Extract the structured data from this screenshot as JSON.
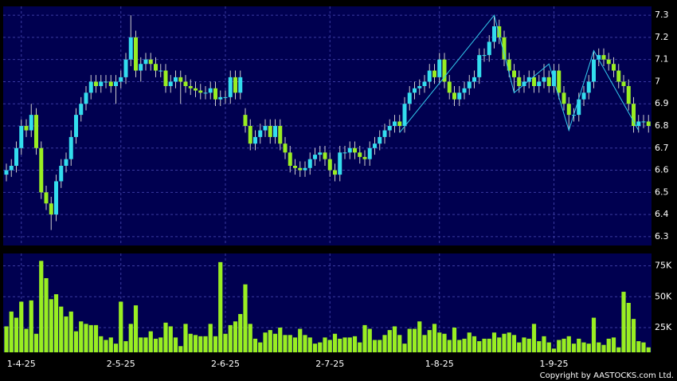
{
  "chart_data": [
    {
      "type": "candlestick",
      "categories": [
        null,
        null,
        null,
        "1-4-25",
        null,
        null,
        null,
        null,
        null,
        null,
        null,
        null,
        null,
        null,
        null,
        null,
        null,
        null,
        null,
        null,
        null,
        null,
        null,
        "2-5-25",
        null,
        null,
        null,
        null,
        null,
        null,
        null,
        null,
        null,
        null,
        null,
        null,
        null,
        null,
        null,
        null,
        null,
        null,
        null,
        null,
        "2-6-25",
        null,
        null,
        null,
        null,
        null,
        null,
        null,
        null,
        null,
        null,
        null,
        null,
        null,
        null,
        null,
        null,
        null,
        null,
        null,
        null,
        "2-7-25",
        null,
        null,
        null,
        null,
        null,
        null,
        null,
        null,
        null,
        null,
        null,
        null,
        null,
        null,
        null,
        null,
        null,
        null,
        null,
        null,
        null,
        "1-8-25",
        null,
        null,
        null,
        null,
        null,
        null,
        null,
        null,
        null,
        null,
        null,
        null,
        null,
        null,
        null,
        null,
        null,
        null,
        null,
        null,
        null,
        null,
        "1-9-25",
        null,
        null,
        null,
        null,
        null,
        null,
        null,
        null,
        null,
        null,
        null,
        null,
        null,
        null,
        null,
        null,
        null,
        null,
        null
      ],
      "open": [
        6.58,
        6.6,
        6.62,
        6.7,
        6.8,
        6.78,
        6.85,
        6.7,
        6.5,
        6.45,
        6.4,
        6.55,
        6.62,
        6.65,
        6.75,
        6.85,
        6.9,
        6.95,
        7.0,
        6.98,
        7.0,
        7.0,
        6.98,
        7.0,
        7.02,
        7.1,
        7.2,
        7.05,
        7.08,
        7.1,
        7.08,
        7.05,
        7.05,
        6.98,
        7.0,
        7.02,
        7.0,
        6.98,
        6.97,
        6.96,
        6.95,
        6.95,
        6.97,
        6.92,
        6.93,
        6.93,
        7.02,
        6.95,
        6.85,
        6.8,
        6.72,
        6.75,
        6.78,
        6.8,
        6.75,
        6.8,
        6.72,
        6.68,
        6.62,
        6.61,
        6.6,
        6.61,
        6.65,
        6.67,
        6.68,
        6.65,
        6.6,
        6.58,
        6.68,
        6.68,
        6.7,
        6.68,
        6.66,
        6.65,
        6.7,
        6.72,
        6.75,
        6.78,
        6.8,
        6.82,
        6.8,
        6.9,
        6.95,
        6.97,
        6.98,
        7.0,
        7.05,
        7.02,
        7.1,
        7.0,
        6.95,
        6.92,
        6.95,
        6.97,
        7.0,
        7.02,
        7.12,
        7.12,
        7.18,
        7.25,
        7.2,
        7.1,
        7.05,
        7.02,
        6.98,
        7.0,
        7.02,
        6.98,
        7.0,
        7.02,
        6.98,
        7.05,
        6.95,
        6.9,
        6.85,
        6.85,
        6.92,
        6.95,
        7.0,
        7.1,
        7.12,
        7.1,
        7.08,
        7.05,
        7.0,
        6.98,
        6.9,
        6.8,
        6.82,
        6.82
      ],
      "high": [
        6.63,
        6.65,
        6.73,
        6.83,
        6.83,
        6.9,
        6.88,
        6.73,
        6.53,
        6.48,
        6.58,
        6.65,
        6.68,
        6.78,
        6.88,
        6.93,
        6.98,
        7.03,
        7.03,
        7.03,
        7.03,
        7.03,
        7.03,
        7.05,
        7.13,
        7.3,
        7.23,
        7.11,
        7.13,
        7.13,
        7.11,
        7.08,
        7.08,
        7.03,
        7.05,
        7.05,
        7.03,
        7.01,
        7.0,
        6.99,
        6.98,
        7.0,
        7.0,
        6.96,
        6.96,
        7.05,
        7.05,
        7.05,
        6.88,
        6.83,
        6.78,
        6.81,
        6.83,
        6.83,
        6.83,
        6.83,
        6.75,
        6.71,
        6.65,
        6.64,
        6.64,
        6.68,
        6.7,
        6.71,
        6.71,
        6.68,
        6.63,
        6.71,
        6.71,
        6.73,
        6.73,
        6.71,
        6.69,
        6.73,
        6.75,
        6.78,
        6.81,
        6.83,
        6.85,
        6.85,
        6.93,
        6.98,
        7.0,
        7.01,
        7.03,
        7.08,
        7.08,
        7.13,
        7.13,
        7.03,
        6.98,
        6.98,
        7.0,
        7.03,
        7.05,
        7.15,
        7.15,
        7.21,
        7.3,
        7.28,
        7.23,
        7.13,
        7.08,
        7.05,
        7.03,
        7.05,
        7.05,
        7.03,
        7.08,
        7.05,
        7.08,
        7.08,
        6.98,
        6.93,
        6.88,
        6.95,
        6.98,
        7.03,
        7.14,
        7.15,
        7.15,
        7.13,
        7.11,
        7.08,
        7.03,
        7.01,
        6.93,
        6.85,
        6.85,
        6.85
      ],
      "low": [
        6.55,
        6.57,
        6.59,
        6.67,
        6.75,
        6.75,
        6.67,
        6.47,
        6.42,
        6.33,
        6.37,
        6.52,
        6.59,
        6.62,
        6.72,
        6.82,
        6.87,
        6.92,
        6.95,
        6.95,
        6.97,
        6.95,
        6.9,
        6.97,
        6.99,
        7.07,
        7.02,
        7.0,
        7.05,
        7.05,
        7.02,
        7.02,
        6.95,
        6.95,
        6.97,
        6.9,
        6.95,
        6.94,
        6.93,
        6.92,
        6.92,
        6.92,
        6.89,
        6.89,
        6.9,
        6.9,
        6.92,
        6.92,
        6.77,
        6.69,
        6.69,
        6.72,
        6.75,
        6.72,
        6.72,
        6.69,
        6.65,
        6.59,
        6.58,
        6.57,
        6.57,
        6.58,
        6.62,
        6.64,
        6.62,
        6.57,
        6.55,
        6.55,
        6.65,
        6.65,
        6.65,
        6.63,
        6.62,
        6.62,
        6.67,
        6.69,
        6.72,
        6.75,
        6.77,
        6.77,
        6.77,
        6.87,
        6.92,
        6.94,
        6.95,
        6.97,
        6.99,
        6.99,
        6.97,
        6.92,
        6.89,
        6.89,
        6.92,
        6.94,
        6.97,
        6.99,
        7.09,
        7.09,
        7.15,
        7.17,
        7.07,
        7.02,
        6.95,
        6.95,
        6.95,
        6.97,
        6.95,
        6.95,
        6.97,
        6.95,
        6.95,
        6.92,
        6.87,
        6.78,
        6.82,
        6.82,
        6.89,
        6.92,
        6.97,
        7.07,
        7.07,
        7.05,
        7.02,
        6.97,
        6.95,
        6.87,
        6.77,
        6.77,
        6.79,
        6.77
      ],
      "close": [
        6.6,
        6.62,
        6.7,
        6.8,
        6.78,
        6.85,
        6.7,
        6.5,
        6.45,
        6.4,
        6.55,
        6.62,
        6.65,
        6.75,
        6.85,
        6.9,
        6.95,
        7.0,
        6.98,
        7.0,
        7.0,
        6.98,
        7.0,
        7.02,
        7.1,
        7.2,
        7.05,
        7.08,
        7.1,
        7.08,
        7.05,
        7.05,
        6.98,
        7.0,
        7.02,
        7.0,
        6.98,
        6.97,
        6.96,
        6.95,
        6.95,
        6.97,
        6.92,
        6.93,
        6.93,
        7.02,
        6.95,
        7.02,
        6.8,
        6.72,
        6.75,
        6.78,
        6.8,
        6.75,
        6.8,
        6.72,
        6.68,
        6.62,
        6.61,
        6.6,
        6.61,
        6.65,
        6.67,
        6.68,
        6.65,
        6.6,
        6.58,
        6.68,
        6.68,
        6.7,
        6.68,
        6.66,
        6.65,
        6.7,
        6.72,
        6.75,
        6.78,
        6.8,
        6.82,
        6.8,
        6.9,
        6.95,
        6.97,
        6.98,
        7.0,
        7.05,
        7.02,
        7.1,
        7.0,
        6.95,
        6.92,
        6.95,
        6.97,
        7.0,
        7.02,
        7.12,
        7.12,
        7.18,
        7.25,
        7.2,
        7.1,
        7.05,
        7.02,
        6.98,
        7.0,
        7.02,
        6.98,
        7.0,
        7.02,
        6.98,
        7.05,
        6.95,
        6.9,
        6.85,
        6.85,
        6.92,
        6.95,
        7.0,
        7.1,
        7.12,
        7.1,
        7.08,
        7.05,
        7.0,
        6.98,
        6.9,
        6.8,
        6.82,
        6.82,
        6.8
      ],
      "up_color": "#33ddee",
      "down_color": "#99ee22",
      "overlay": {
        "x": [
          79,
          98,
          102,
          109,
          113,
          118,
          127
        ],
        "values": [
          6.77,
          7.3,
          6.95,
          7.08,
          6.78,
          7.14,
          6.78
        ],
        "color": "#33ccee"
      },
      "ylim": [
        6.26,
        7.34
      ],
      "yticks": [
        6.3,
        6.4,
        6.5,
        6.6,
        6.7,
        6.8,
        6.9,
        7,
        7.1,
        7.2,
        7.3
      ],
      "grid": true
    },
    {
      "type": "bar",
      "values": [
        26000,
        38000,
        33000,
        46000,
        24000,
        47000,
        20000,
        79000,
        65000,
        48000,
        52000,
        42000,
        34000,
        38000,
        22000,
        30000,
        28000,
        27000,
        27000,
        18000,
        15000,
        17000,
        12000,
        46000,
        14000,
        28000,
        43000,
        17000,
        17000,
        22000,
        16000,
        17000,
        29000,
        26000,
        17000,
        10000,
        28000,
        20000,
        19000,
        18000,
        18000,
        28000,
        18000,
        78000,
        20000,
        27000,
        30000,
        36000,
        60000,
        28000,
        16000,
        13000,
        21000,
        23000,
        20000,
        25000,
        19000,
        19000,
        17000,
        24000,
        19000,
        17000,
        12000,
        13000,
        17000,
        15000,
        20000,
        16000,
        17000,
        17000,
        18000,
        13000,
        27000,
        24000,
        15000,
        15000,
        19000,
        23000,
        26000,
        19000,
        12000,
        24000,
        24000,
        30000,
        19000,
        23000,
        28000,
        21000,
        20000,
        15000,
        25000,
        15000,
        16000,
        21000,
        18000,
        14000,
        16000,
        16000,
        21000,
        17000,
        20000,
        21000,
        19000,
        13000,
        17000,
        16000,
        28000,
        14000,
        18000,
        13000,
        8000,
        15000,
        16000,
        18000,
        12000,
        16000,
        13000,
        12000,
        33000,
        13000,
        11000,
        16000,
        17000,
        9000,
        54000,
        45000,
        32000,
        14000,
        13000,
        9000
      ],
      "color": "#99ee22",
      "ylim": [
        5000,
        85000
      ],
      "yticks": [
        {
          "value": 25000,
          "label": "25K"
        },
        {
          "value": 50000,
          "label": "50K"
        },
        {
          "value": 75000,
          "label": "75K"
        }
      ],
      "grid": true
    }
  ],
  "copyright": "Copyright by AASTOCKS.com Ltd."
}
